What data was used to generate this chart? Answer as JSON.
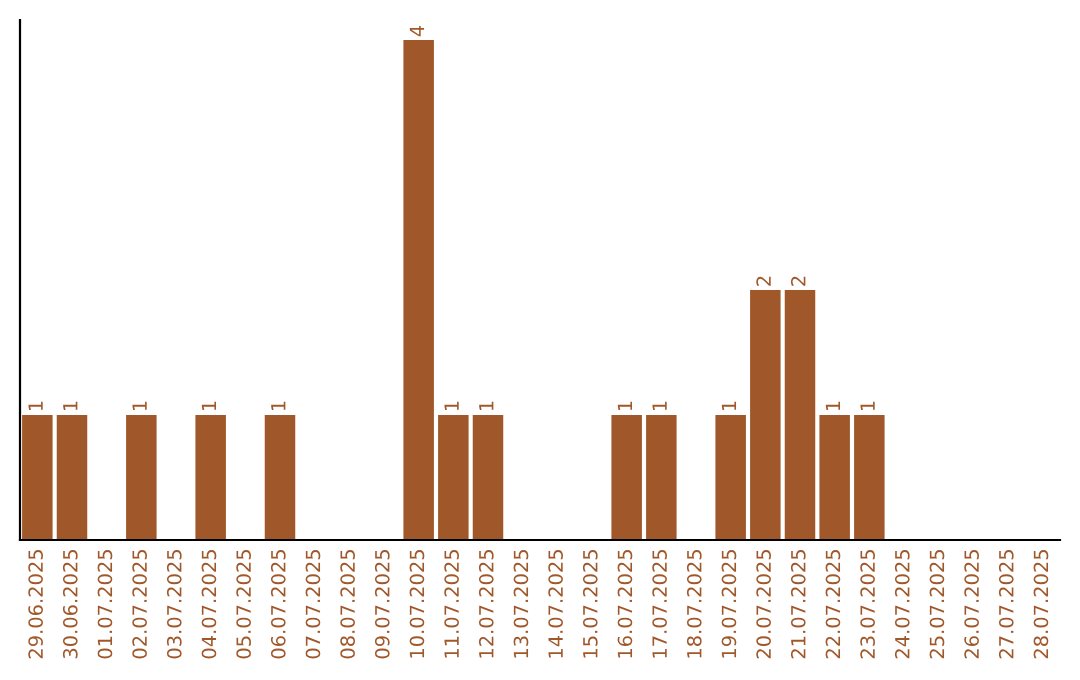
{
  "chart_data": {
    "type": "bar",
    "categories": [
      "29.06.2025",
      "30.06.2025",
      "01.07.2025",
      "02.07.2025",
      "03.07.2025",
      "04.07.2025",
      "05.07.2025",
      "06.07.2025",
      "07.07.2025",
      "08.07.2025",
      "09.07.2025",
      "10.07.2025",
      "11.07.2025",
      "12.07.2025",
      "13.07.2025",
      "14.07.2025",
      "15.07.2025",
      "16.07.2025",
      "17.07.2025",
      "18.07.2025",
      "19.07.2025",
      "20.07.2025",
      "21.07.2025",
      "22.07.2025",
      "23.07.2025",
      "24.07.2025",
      "25.07.2025",
      "26.07.2025",
      "27.07.2025",
      "28.07.2025"
    ],
    "values": [
      1,
      1,
      0,
      1,
      0,
      1,
      0,
      1,
      0,
      0,
      0,
      4,
      1,
      1,
      0,
      0,
      0,
      1,
      1,
      0,
      1,
      2,
      2,
      1,
      1,
      0,
      0,
      0,
      0,
      0
    ],
    "value_labels": [
      "1",
      "1",
      null,
      "1",
      null,
      "1",
      null,
      "1",
      null,
      null,
      null,
      "4",
      "1",
      "1",
      null,
      null,
      null,
      "1",
      "1",
      null,
      "1",
      "2",
      "2",
      "1",
      "1",
      null,
      null,
      null,
      null,
      null
    ],
    "color": "#a0582a",
    "ylim": [
      0,
      4.16
    ],
    "tick_labels": "x",
    "grid": false,
    "legend": false
  }
}
